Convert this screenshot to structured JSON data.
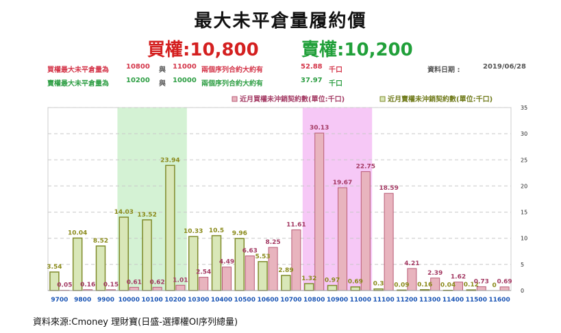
{
  "title": "最大未平倉量履約價",
  "subtitle_call": "買權:10,800",
  "subtitle_put": "賣權:10,200",
  "info": {
    "call_row": {
      "label": "買權最大未平倉量為",
      "strike1": "10800",
      "and": "與",
      "strike2": "11000",
      "text": "兩個序列合約大約有",
      "value": "52.88",
      "unit": "千口"
    },
    "put_row": {
      "label": "賣權最大未平倉量為",
      "strike1": "10200",
      "and": "與",
      "strike2": "10000",
      "text": "兩個序列合約大約有",
      "value": "37.97",
      "unit": "千口"
    },
    "date_label": "資料日期 :",
    "date": "2019/06/28"
  },
  "source": "資料來源:Cmoney 理財寶(日盛-選擇權OI序列總量)",
  "colors": {
    "call_fill": "#e8b4be",
    "call_stroke": "#b85a76",
    "put_fill": "#d9e7b8",
    "put_stroke": "#7f8a2a",
    "highlight_green": "#d4f2d4",
    "highlight_magenta": "#f6c8f6"
  },
  "chart_data": {
    "type": "bar",
    "categories": [
      "9700",
      "9800",
      "9900",
      "10000",
      "10100",
      "10200",
      "10300",
      "10400",
      "10500",
      "10600",
      "10700",
      "10800",
      "10900",
      "11000",
      "11100",
      "11200",
      "11300",
      "11400",
      "11500",
      "11600"
    ],
    "series": [
      {
        "name": "近月買權未沖銷契約數(單位:千口)",
        "values": [
          0.05,
          0.16,
          0.15,
          0.61,
          0.62,
          1.01,
          2.54,
          4.49,
          6.63,
          8.25,
          11.61,
          30.13,
          19.67,
          22.75,
          18.59,
          4.21,
          2.39,
          1.62,
          0.73,
          0.69
        ]
      },
      {
        "name": "近月賣權未沖銷契約數(單位:千口)",
        "values": [
          3.54,
          10.04,
          8.52,
          14.03,
          13.52,
          23.94,
          10.33,
          10.5,
          9.96,
          5.53,
          2.89,
          1.32,
          0.97,
          0.69,
          0.3,
          0.09,
          0.16,
          0.04,
          0.12,
          0
        ]
      }
    ],
    "labels_call": [
      "0.05",
      "0.16",
      "0.15",
      "0.61",
      "0.62",
      "1.01",
      "2.54",
      "4.49",
      "6.63",
      "8.25",
      "11.61",
      "30.13",
      "19.67",
      "22.75",
      "18.59",
      "4.21",
      "2.39",
      "1.62",
      "0.73",
      "0.69"
    ],
    "labels_put": [
      "3.54",
      "10.04",
      "8.52",
      "14.03",
      "13.52",
      "23.94",
      "10.33",
      "10.5",
      "9.96",
      "5.53",
      "2.89",
      "1.32",
      "0.97",
      "0.69",
      "0.3",
      "0.09",
      "0.16",
      "0.04",
      "0.12",
      "0"
    ],
    "y_ticks": [
      "0",
      "5",
      "10",
      "15",
      "20",
      "25",
      "30",
      "35"
    ],
    "ylim": [
      0,
      35
    ],
    "y_axis_side": "right",
    "grid": true,
    "legend_position": "top-right",
    "highlight_ranges": [
      {
        "from": "10000",
        "to": "10200",
        "color": "green"
      },
      {
        "from": "10800",
        "to": "11000",
        "color": "magenta"
      }
    ]
  }
}
